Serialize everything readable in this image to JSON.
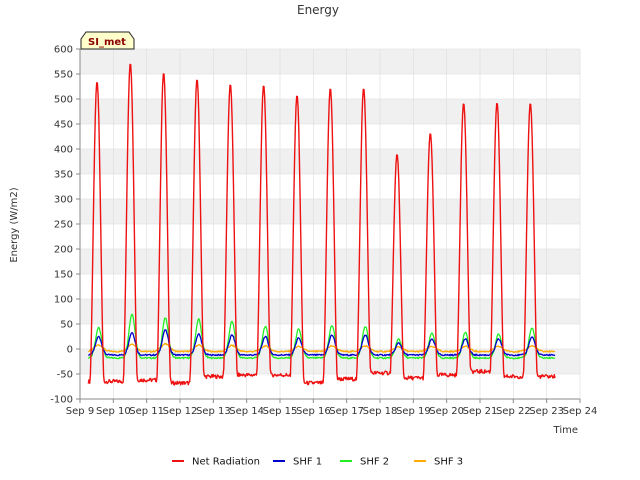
{
  "chart_data": {
    "type": "line",
    "title": "Energy",
    "xlabel": "Time",
    "ylabel": "Energy (W/m2)",
    "badge": "SI_met",
    "ylim": [
      -100,
      600
    ],
    "yticks": [
      -100,
      -50,
      0,
      50,
      100,
      150,
      200,
      250,
      300,
      350,
      400,
      450,
      500,
      550,
      600
    ],
    "xlim": [
      9,
      24
    ],
    "xticks": [
      {
        "value": 9,
        "label": "Sep 9"
      },
      {
        "value": 10,
        "label": "Sep 10"
      },
      {
        "value": 11,
        "label": "Sep 11"
      },
      {
        "value": 12,
        "label": "Sep 12"
      },
      {
        "value": 13,
        "label": "Sep 13"
      },
      {
        "value": 14,
        "label": "Sep 14"
      },
      {
        "value": 15,
        "label": "Sep 15"
      },
      {
        "value": 16,
        "label": "Sep 16"
      },
      {
        "value": 17,
        "label": "Sep 17"
      },
      {
        "value": 18,
        "label": "Sep 18"
      },
      {
        "value": 19,
        "label": "Sep 19"
      },
      {
        "value": 20,
        "label": "Sep 20"
      },
      {
        "value": 21,
        "label": "Sep 21"
      },
      {
        "value": 22,
        "label": "Sep 22"
      },
      {
        "value": 23,
        "label": "Sep 23"
      },
      {
        "value": 24,
        "label": "Sep 24"
      }
    ],
    "data_start": 9.25,
    "data_end": 23.25,
    "days": [
      {
        "day": 9,
        "net_peak": 535,
        "net_night": -65,
        "shf1": 25,
        "shf2": 43,
        "shf3": 8
      },
      {
        "day": 10,
        "net_peak": 572,
        "net_night": -62,
        "shf1": 33,
        "shf2": 70,
        "shf3": 10
      },
      {
        "day": 11,
        "net_peak": 553,
        "net_night": -68,
        "shf1": 38,
        "shf2": 62,
        "shf3": 10
      },
      {
        "day": 12,
        "net_peak": 540,
        "net_night": -55,
        "shf1": 30,
        "shf2": 60,
        "shf3": 8
      },
      {
        "day": 13,
        "net_peak": 530,
        "net_night": -52,
        "shf1": 28,
        "shf2": 55,
        "shf3": 7
      },
      {
        "day": 14,
        "net_peak": 528,
        "net_night": -52,
        "shf1": 25,
        "shf2": 45,
        "shf3": 6
      },
      {
        "day": 15,
        "net_peak": 508,
        "net_night": -68,
        "shf1": 22,
        "shf2": 40,
        "shf3": 5
      },
      {
        "day": 16,
        "net_peak": 522,
        "net_night": -60,
        "shf1": 28,
        "shf2": 47,
        "shf3": 6
      },
      {
        "day": 17,
        "net_peak": 522,
        "net_night": -48,
        "shf1": 28,
        "shf2": 45,
        "shf3": 6
      },
      {
        "day": 18,
        "net_peak": 390,
        "net_night": -58,
        "shf1": 12,
        "shf2": 20,
        "shf3": 4
      },
      {
        "day": 19,
        "net_peak": 432,
        "net_night": -52,
        "shf1": 20,
        "shf2": 32,
        "shf3": 5
      },
      {
        "day": 20,
        "net_peak": 492,
        "net_night": -45,
        "shf1": 20,
        "shf2": 33,
        "shf3": 5
      },
      {
        "day": 21,
        "net_peak": 493,
        "net_night": -55,
        "shf1": 20,
        "shf2": 30,
        "shf3": 5
      },
      {
        "day": 22,
        "net_peak": 492,
        "net_night": -55,
        "shf1": 24,
        "shf2": 42,
        "shf3": 6
      }
    ],
    "series": [
      {
        "name": "Net Radiation",
        "key": "net",
        "color": "#ee1111"
      },
      {
        "name": "SHF 1",
        "key": "shf1",
        "color": "#0000cc"
      },
      {
        "name": "SHF 2",
        "key": "shf2",
        "color": "#22ee22"
      },
      {
        "name": "SHF 3",
        "key": "shf3",
        "color": "#ffaa00"
      }
    ],
    "grid": true,
    "legend_position": "bottom-center"
  }
}
